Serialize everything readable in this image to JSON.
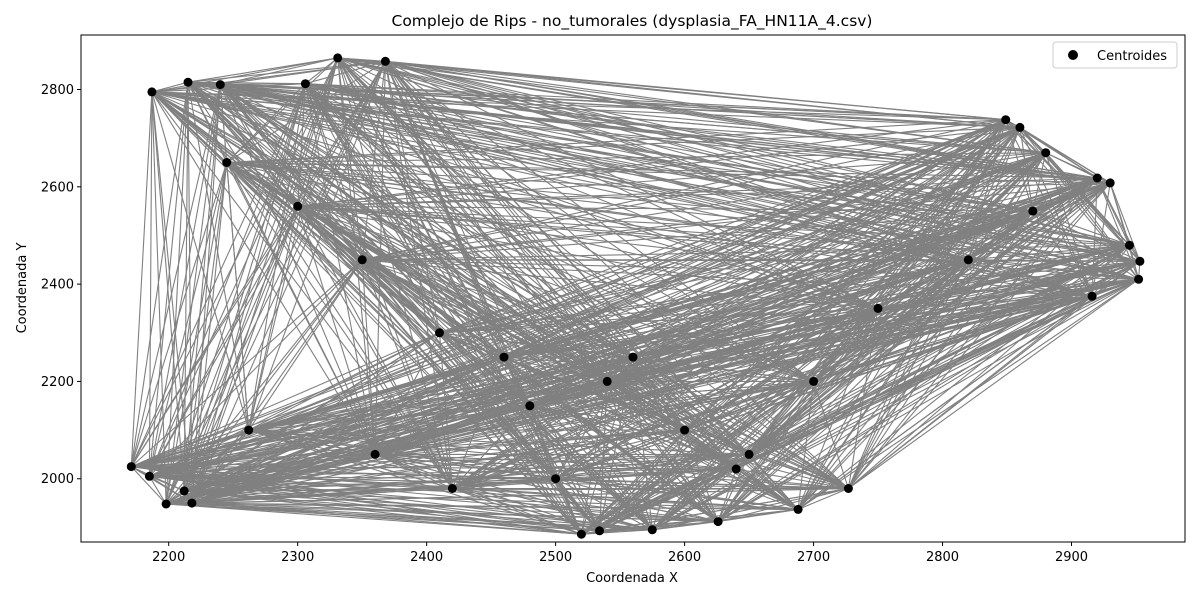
{
  "chart_data": {
    "type": "scatter",
    "title": "Complejo de Rips - no_tumorales (dysplasia_FA_HN11A_4.csv)",
    "xlabel": "Coordenada X",
    "ylabel": "Coordenada Y",
    "xlim": [
      2132,
      2988
    ],
    "ylim": [
      1870,
      2912
    ],
    "xticks": [
      2200,
      2300,
      2400,
      2500,
      2600,
      2700,
      2800,
      2900
    ],
    "yticks": [
      2000,
      2200,
      2400,
      2600,
      2800
    ],
    "grid": false,
    "legend": {
      "position": "top-right",
      "entries": [
        "Centroides"
      ]
    },
    "series": [
      {
        "name": "Centroides",
        "marker_color": "#000000",
        "edge_color": "#808080",
        "x": [
          2187,
          2215,
          2240,
          2306,
          2331,
          2368,
          2849,
          2860,
          2880,
          2920,
          2930,
          2945,
          2953,
          2952,
          2916,
          2171,
          2185,
          2198,
          2212,
          2218,
          2520,
          2534,
          2575,
          2626,
          2688,
          2727,
          2262,
          2245,
          2300,
          2350,
          2410,
          2460,
          2480,
          2540,
          2560,
          2600,
          2650,
          2700,
          2750,
          2820,
          2870,
          2360,
          2420,
          2500,
          2640
        ],
        "y": [
          2795,
          2815,
          2810,
          2812,
          2865,
          2858,
          2738,
          2722,
          2670,
          2618,
          2608,
          2480,
          2447,
          2410,
          2375,
          2025,
          2005,
          1948,
          1975,
          1950,
          1886,
          1893,
          1895,
          1912,
          1937,
          1980,
          2100,
          2650,
          2560,
          2450,
          2300,
          2250,
          2150,
          2200,
          2250,
          2100,
          2050,
          2200,
          2350,
          2450,
          2550,
          2050,
          1980,
          2000,
          2020
        ]
      }
    ]
  }
}
